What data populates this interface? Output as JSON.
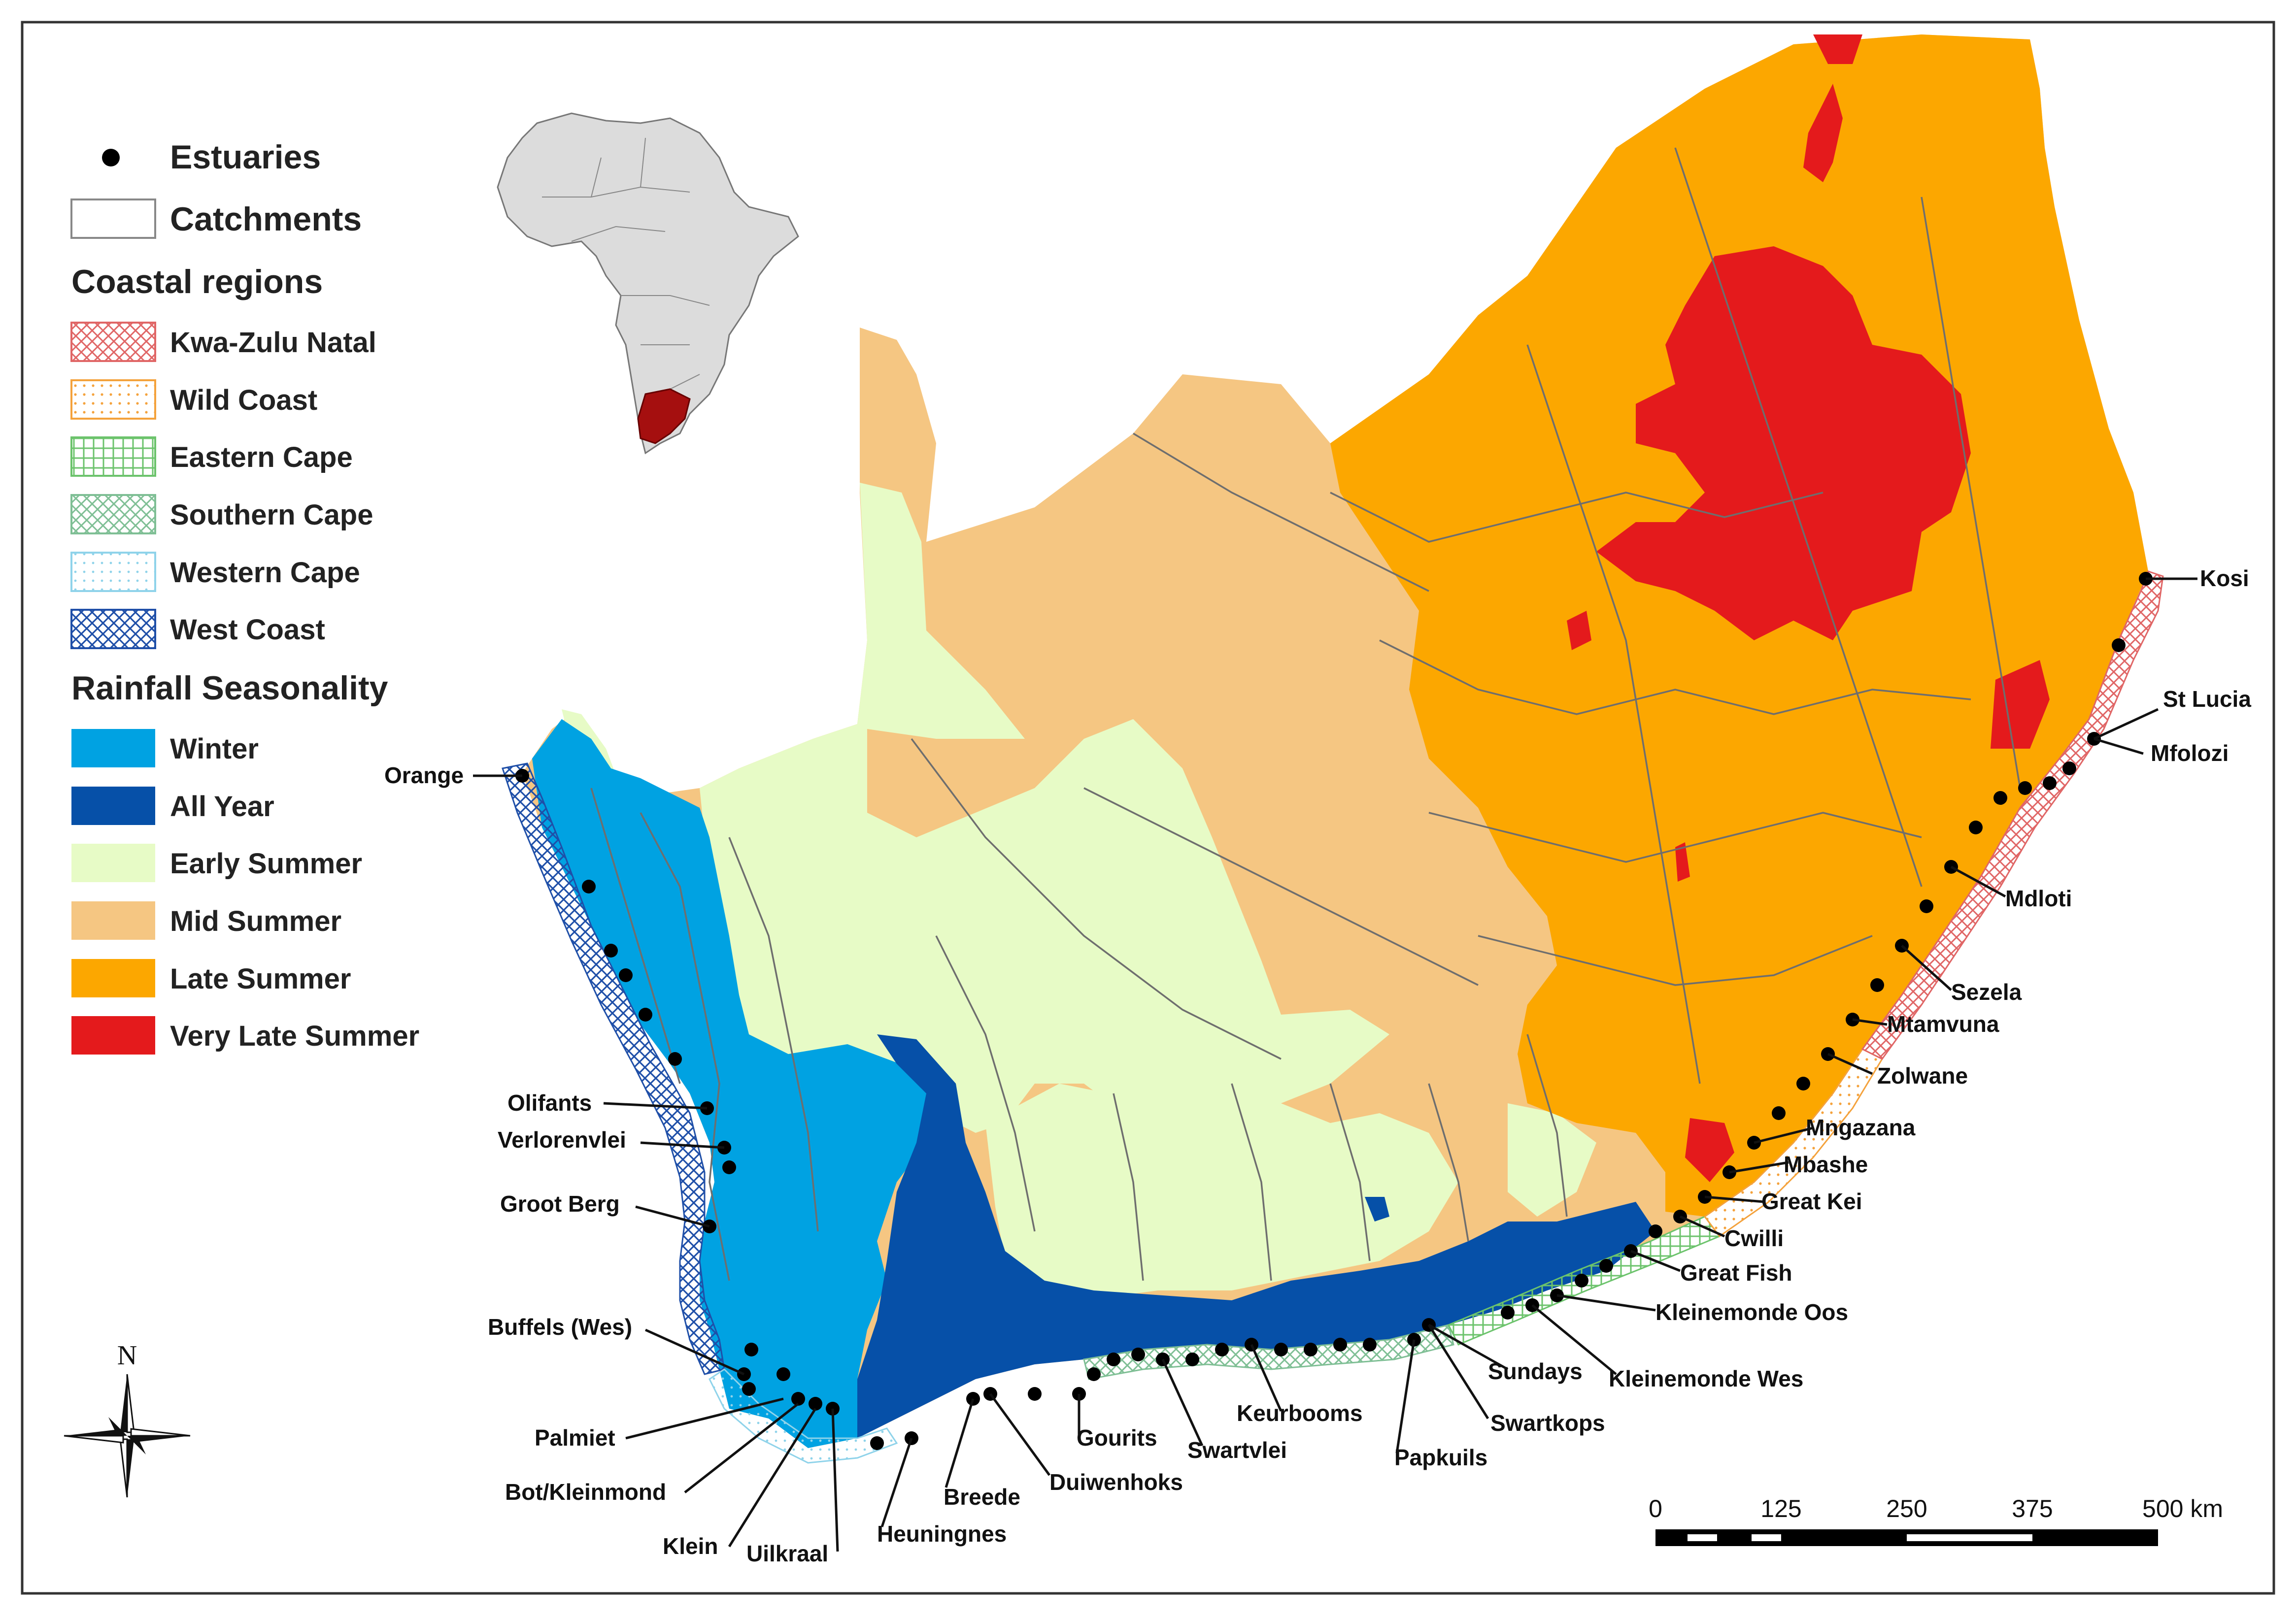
{
  "legend": {
    "estuaries": "Estuaries",
    "catchments": "Catchments",
    "coastal_title": "Coastal regions",
    "coastal": [
      {
        "label": "Kwa-Zulu Natal",
        "color": "#e06666",
        "pattern": "crosshatch"
      },
      {
        "label": "Wild Coast",
        "color": "#f4a23c",
        "pattern": "dots"
      },
      {
        "label": "Eastern Cape",
        "color": "#6cc36c",
        "pattern": "grid"
      },
      {
        "label": "Southern Cape",
        "color": "#7fbf95",
        "pattern": "crosshatch"
      },
      {
        "label": "Western Cape",
        "color": "#8fd3ea",
        "pattern": "dots"
      },
      {
        "label": "West Coast",
        "color": "#1f4fa8",
        "pattern": "crosshatch"
      }
    ],
    "rainfall_title": "Rainfall Seasonality",
    "rainfall": [
      {
        "label": "Winter",
        "color": "#00a2e2"
      },
      {
        "label": "All Year",
        "color": "#0650a8"
      },
      {
        "label": "Early Summer",
        "color": "#e7fbc6"
      },
      {
        "label": "Mid Summer",
        "color": "#f5c682"
      },
      {
        "label": "Late Summer",
        "color": "#fca700"
      },
      {
        "label": "Very Late Summer",
        "color": "#e41a1c"
      }
    ]
  },
  "inset": {
    "africa_color": "#dcdcdc",
    "south_africa_color": "#a50f0f"
  },
  "north_arrow": "N",
  "scale_bar": {
    "ticks": [
      "0",
      "125",
      "250",
      "375",
      "500 km"
    ]
  },
  "estuary_labels": [
    "Orange",
    "Olifants",
    "Verlorenvlei",
    "Groot Berg",
    "Buffels (Wes)",
    "Palmiet",
    "Bot/Kleinmond",
    "Klein",
    "Uilkraal",
    "Heuningnes",
    "Breede",
    "Duiwenhoks",
    "Gourits",
    "Swartvlei",
    "Keurbooms",
    "Papkuils",
    "Swartkops",
    "Sundays",
    "Kleinemonde Wes",
    "Kleinemonde Oos",
    "Great Fish",
    "Cwilli",
    "Great Kei",
    "Mbashe",
    "Mngazana",
    "Zolwane",
    "Mtamvuna",
    "Sezela",
    "Mdloti",
    "Mfolozi",
    "St Lucia",
    "Kosi"
  ]
}
